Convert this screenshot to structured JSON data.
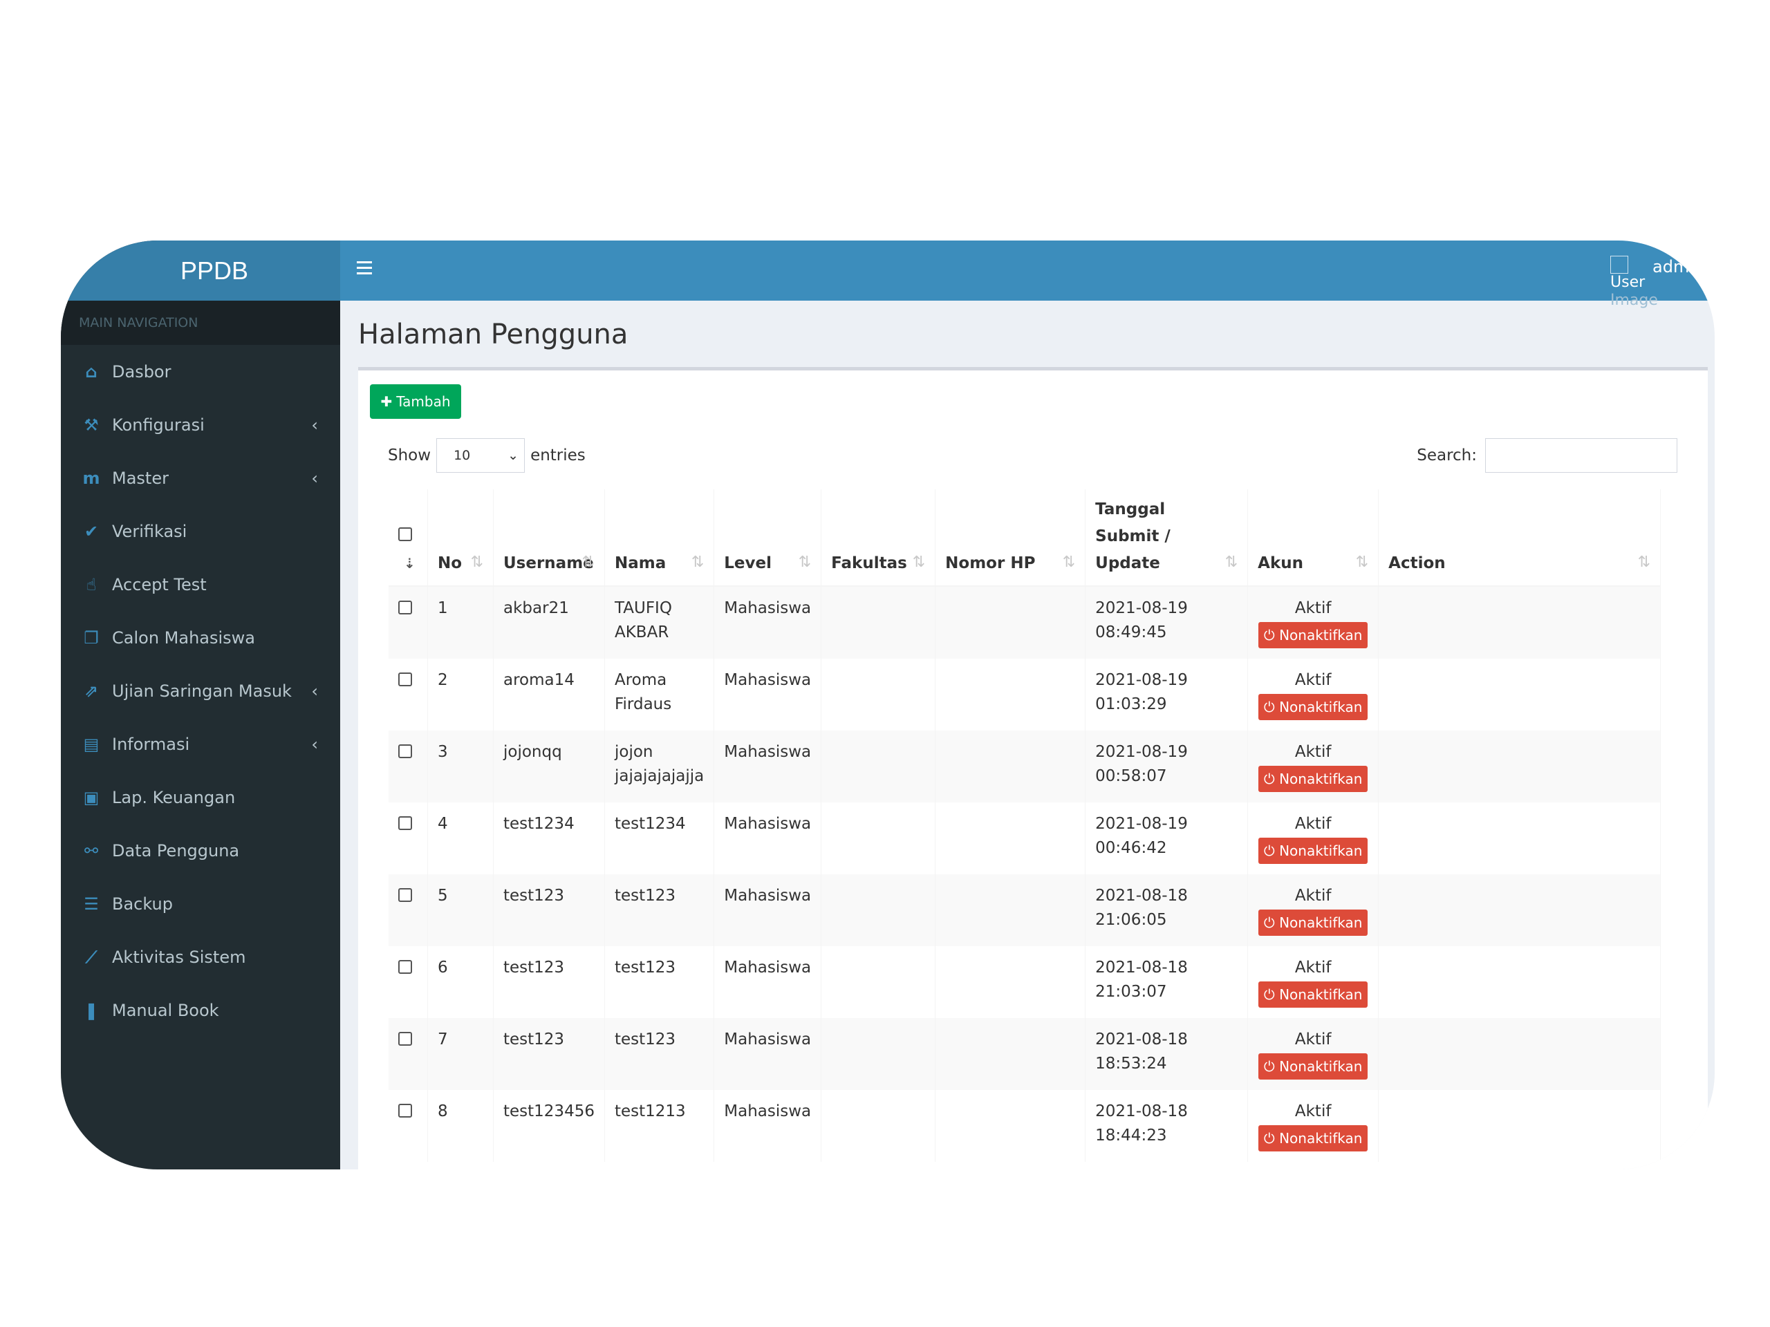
{
  "app": {
    "logo": "PPDB"
  },
  "sidebar": {
    "header": "MAIN NAVIGATION",
    "items": [
      {
        "label": "Dasbor",
        "icon": "home-icon",
        "has_sub": false
      },
      {
        "label": "Konfigurasi",
        "icon": "wrench-icon",
        "has_sub": true
      },
      {
        "label": "Master",
        "icon": "master-icon",
        "has_sub": true
      },
      {
        "label": "Verifikasi",
        "icon": "shield-check-icon",
        "has_sub": false
      },
      {
        "label": "Accept Test",
        "icon": "thumbs-up-icon",
        "has_sub": false
      },
      {
        "label": "Calon Mahasiswa",
        "icon": "clone-icon",
        "has_sub": false
      },
      {
        "label": "Ujian Saringan Masuk",
        "icon": "share-square-icon",
        "has_sub": true
      },
      {
        "label": "Informasi",
        "icon": "newspaper-icon",
        "has_sub": true
      },
      {
        "label": "Lap. Keuangan",
        "icon": "money-icon",
        "has_sub": false
      },
      {
        "label": "Data Pengguna",
        "icon": "sitemap-icon",
        "has_sub": false
      },
      {
        "label": "Backup",
        "icon": "database-icon",
        "has_sub": false
      },
      {
        "label": "Aktivitas Sistem",
        "icon": "line-chart-icon",
        "has_sub": false
      },
      {
        "label": "Manual Book",
        "icon": "book-icon",
        "has_sub": false
      }
    ]
  },
  "header": {
    "user_image_alt_1": "User",
    "user_image_alt_2": "Image",
    "username": "admin"
  },
  "page": {
    "title": "Halaman Pengguna",
    "add_button": "Tambah",
    "show_label": "Show",
    "entries_value": "10",
    "entries_label": "entries",
    "search_label": "Search:",
    "search_value": ""
  },
  "table": {
    "columns": [
      "No",
      "Username",
      "Nama",
      "Level",
      "Fakultas",
      "Nomor HP",
      "Tanggal Submit / Update",
      "Akun",
      "Action"
    ],
    "status_label": "Aktif",
    "deactivate_label": "Nonaktifkan",
    "rows": [
      {
        "no": "1",
        "username": "akbar21",
        "nama": "TAUFIQ AKBAR",
        "level": "Mahasiswa",
        "fakultas": "",
        "hp": "",
        "date": "2021-08-19",
        "time": "08:49:45"
      },
      {
        "no": "2",
        "username": "aroma14",
        "nama": "Aroma Firdaus",
        "level": "Mahasiswa",
        "fakultas": "",
        "hp": "",
        "date": "2021-08-19",
        "time": "01:03:29"
      },
      {
        "no": "3",
        "username": "jojonqq",
        "nama": "jojon jajajajajajja",
        "level": "Mahasiswa",
        "fakultas": "",
        "hp": "",
        "date": "2021-08-19",
        "time": "00:58:07"
      },
      {
        "no": "4",
        "username": "test1234",
        "nama": "test1234",
        "level": "Mahasiswa",
        "fakultas": "",
        "hp": "",
        "date": "2021-08-19",
        "time": "00:46:42"
      },
      {
        "no": "5",
        "username": "test123",
        "nama": "test123",
        "level": "Mahasiswa",
        "fakultas": "",
        "hp": "",
        "date": "2021-08-18",
        "time": "21:06:05"
      },
      {
        "no": "6",
        "username": "test123",
        "nama": "test123",
        "level": "Mahasiswa",
        "fakultas": "",
        "hp": "",
        "date": "2021-08-18",
        "time": "21:03:07"
      },
      {
        "no": "7",
        "username": "test123",
        "nama": "test123",
        "level": "Mahasiswa",
        "fakultas": "",
        "hp": "",
        "date": "2021-08-18",
        "time": "18:53:24"
      },
      {
        "no": "8",
        "username": "test123456",
        "nama": "test1213",
        "level": "Mahasiswa",
        "fakultas": "",
        "hp": "",
        "date": "2021-08-18",
        "time": "18:44:23"
      }
    ]
  },
  "colors": {
    "header_blue": "#3c8dbc",
    "logo_blue": "#367fa9",
    "sidebar_dark": "#222d32",
    "add_green": "#00a65a",
    "deactivate_red": "#dd4b39",
    "icon_blue": "#3c8dbc"
  }
}
